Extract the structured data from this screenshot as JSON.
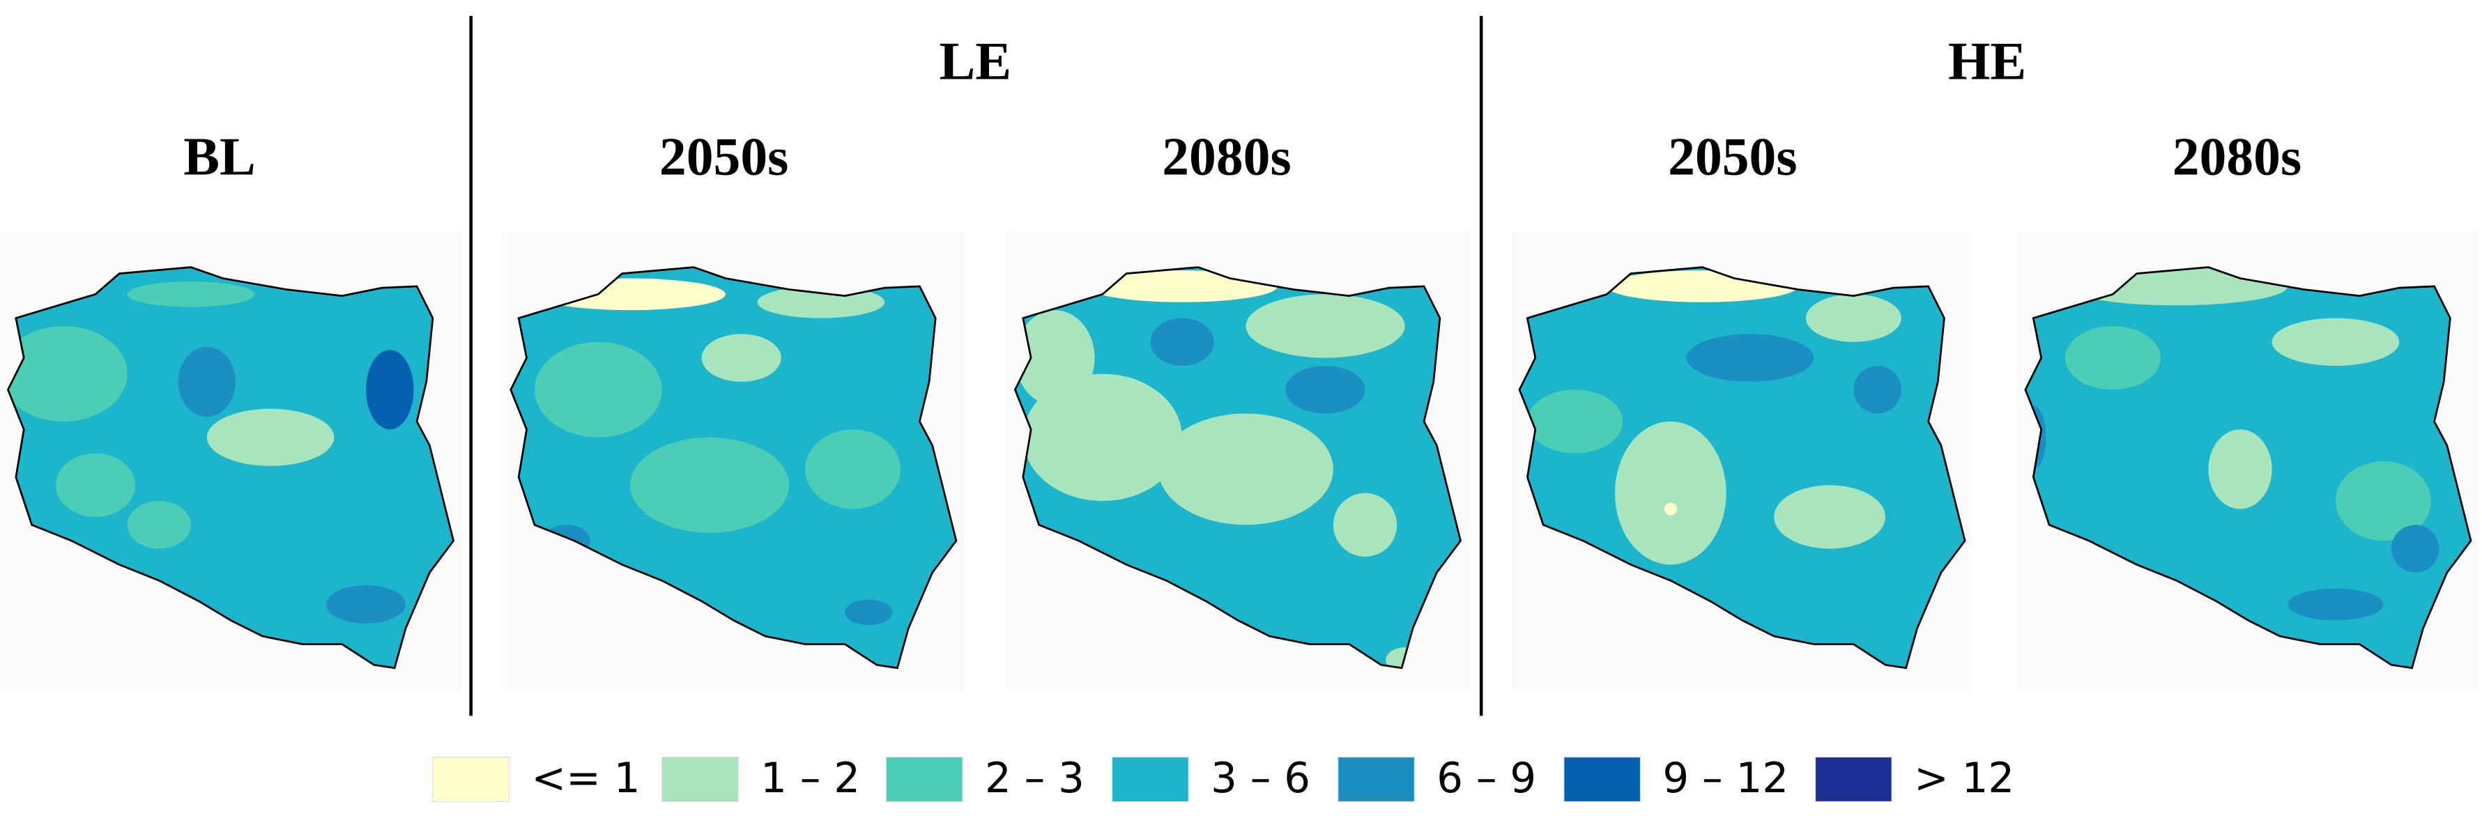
{
  "groups": [
    {
      "title": "LE"
    },
    {
      "title": "HE"
    }
  ],
  "panels": [
    {
      "title": "BL"
    },
    {
      "title": "2050s"
    },
    {
      "title": "2080s"
    },
    {
      "title": "2050s"
    },
    {
      "title": "2080s"
    }
  ],
  "legend": [
    {
      "label": "<= 1",
      "color": "#ffffcc"
    },
    {
      "label": "1 – 2",
      "color": "#a8e5bd"
    },
    {
      "label": "2 – 3",
      "color": "#4ccdb5"
    },
    {
      "label": "3 – 6",
      "color": "#1cb5cc"
    },
    {
      "label": "6 – 9",
      "color": "#1c8fc2"
    },
    {
      "label": "9 – 12",
      "color": "#0660b0"
    },
    {
      "label": "> 12",
      "color": "#1a2f93"
    }
  ]
}
